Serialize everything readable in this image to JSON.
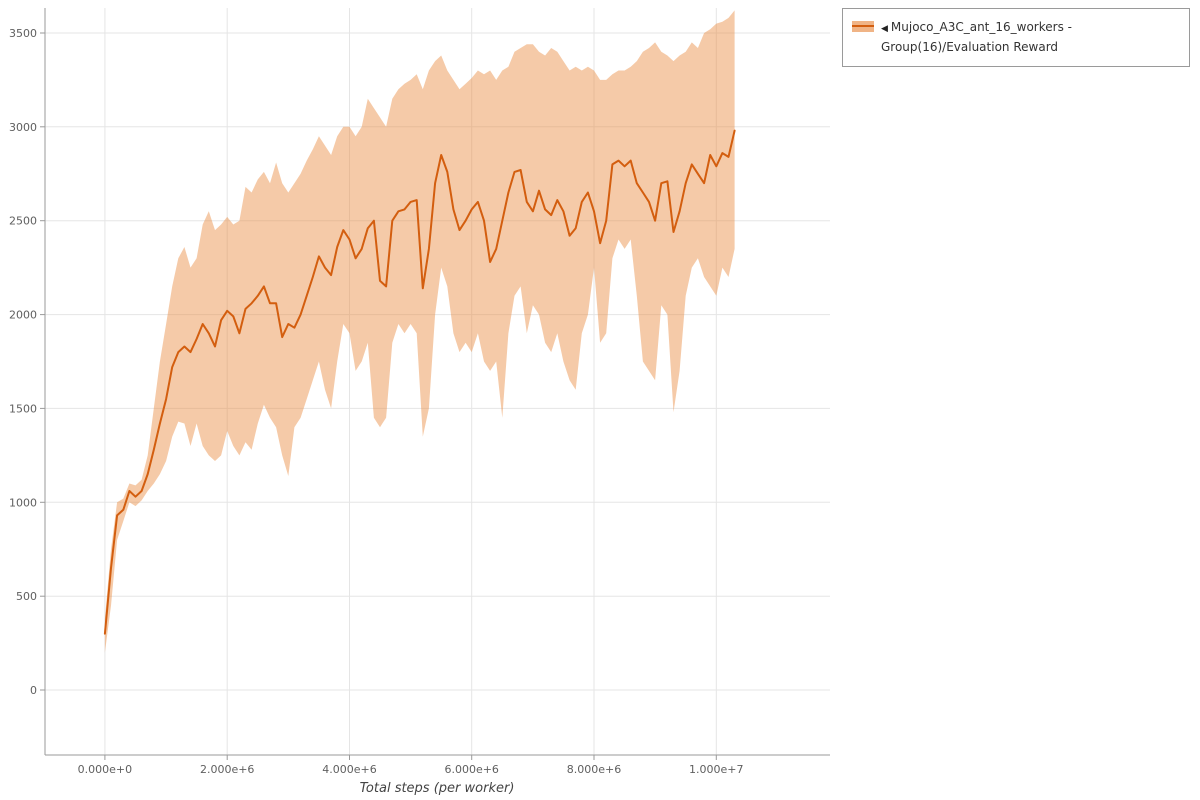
{
  "legend": {
    "marker": "◀",
    "label": "Mujoco_A3C_ant_16_workers - Group(16)/Evaluation Reward"
  },
  "colors": {
    "line": "#d35e0f",
    "band": "#e98a3d",
    "band_opacity": 0.45,
    "swatch_fill": "#f0b486"
  },
  "chart_data": {
    "type": "line",
    "title": "",
    "xlabel": "Total steps (per worker)",
    "ylabel": "",
    "grid": true,
    "legend_position": "top-right outside",
    "xlim": [
      -980000,
      11860000
    ],
    "ylim": [
      -346,
      3633
    ],
    "x_tick_values": [
      0,
      2000000,
      4000000,
      6000000,
      8000000,
      10000000
    ],
    "x_tick_labels": [
      "0.000e+0",
      "2.000e+6",
      "4.000e+6",
      "6.000e+6",
      "8.000e+6",
      "1.000e+7"
    ],
    "y_tick_values": [
      0,
      500,
      1000,
      1500,
      2000,
      2500,
      3000,
      3500
    ],
    "series": [
      {
        "name": "Mujoco_A3C_ant_16_workers - Group(16)/Evaluation Reward",
        "x_start": 0,
        "x_step": 100000,
        "mean": [
          300,
          650,
          930,
          960,
          1060,
          1030,
          1060,
          1150,
          1280,
          1420,
          1550,
          1720,
          1800,
          1830,
          1800,
          1870,
          1950,
          1900,
          1830,
          1970,
          2020,
          1990,
          1900,
          2030,
          2060,
          2100,
          2150,
          2060,
          2060,
          1880,
          1950,
          1930,
          2000,
          2100,
          2200,
          2310,
          2250,
          2210,
          2360,
          2450,
          2400,
          2300,
          2350,
          2460,
          2500,
          2180,
          2150,
          2500,
          2550,
          2560,
          2600,
          2610,
          2140,
          2350,
          2700,
          2850,
          2760,
          2560,
          2450,
          2500,
          2560,
          2600,
          2500,
          2280,
          2350,
          2500,
          2650,
          2760,
          2770,
          2600,
          2550,
          2660,
          2560,
          2530,
          2610,
          2550,
          2420,
          2460,
          2600,
          2650,
          2550,
          2380,
          2500,
          2800,
          2820,
          2790,
          2820,
          2700,
          2650,
          2600,
          2500,
          2700,
          2710,
          2440,
          2550,
          2700,
          2800,
          2750,
          2700,
          2850,
          2790,
          2860,
          2840,
          2980
        ],
        "upper": [
          380,
          750,
          1000,
          1020,
          1100,
          1090,
          1120,
          1250,
          1500,
          1750,
          1950,
          2150,
          2300,
          2360,
          2250,
          2300,
          2480,
          2550,
          2450,
          2480,
          2520,
          2480,
          2500,
          2680,
          2650,
          2720,
          2760,
          2700,
          2810,
          2700,
          2650,
          2700,
          2750,
          2820,
          2880,
          2950,
          2900,
          2850,
          2950,
          3000,
          3000,
          2950,
          3000,
          3150,
          3100,
          3050,
          3000,
          3150,
          3200,
          3230,
          3250,
          3280,
          3200,
          3300,
          3350,
          3380,
          3300,
          3250,
          3200,
          3230,
          3260,
          3300,
          3280,
          3300,
          3250,
          3300,
          3320,
          3400,
          3420,
          3440,
          3440,
          3400,
          3380,
          3420,
          3400,
          3350,
          3300,
          3320,
          3300,
          3320,
          3300,
          3250,
          3250,
          3280,
          3300,
          3300,
          3320,
          3350,
          3400,
          3420,
          3450,
          3400,
          3380,
          3350,
          3380,
          3400,
          3450,
          3420,
          3500,
          3520,
          3550,
          3560,
          3580,
          3620
        ],
        "lower": [
          200,
          450,
          800,
          900,
          1000,
          980,
          1010,
          1060,
          1100,
          1150,
          1220,
          1350,
          1430,
          1420,
          1300,
          1420,
          1300,
          1250,
          1220,
          1250,
          1380,
          1300,
          1250,
          1320,
          1280,
          1420,
          1520,
          1450,
          1400,
          1250,
          1140,
          1400,
          1450,
          1550,
          1650,
          1750,
          1600,
          1500,
          1750,
          1950,
          1900,
          1700,
          1750,
          1850,
          1450,
          1400,
          1450,
          1850,
          1950,
          1900,
          1950,
          1900,
          1350,
          1500,
          2000,
          2250,
          2150,
          1900,
          1800,
          1850,
          1800,
          1900,
          1750,
          1700,
          1750,
          1450,
          1900,
          2100,
          2150,
          1900,
          2050,
          2000,
          1850,
          1800,
          1900,
          1750,
          1650,
          1600,
          1900,
          2000,
          2250,
          1850,
          1900,
          2300,
          2400,
          2350,
          2400,
          2100,
          1750,
          1700,
          1650,
          2050,
          2000,
          1480,
          1700,
          2100,
          2250,
          2300,
          2200,
          2150,
          2100,
          2250,
          2200,
          2350
        ]
      }
    ]
  }
}
